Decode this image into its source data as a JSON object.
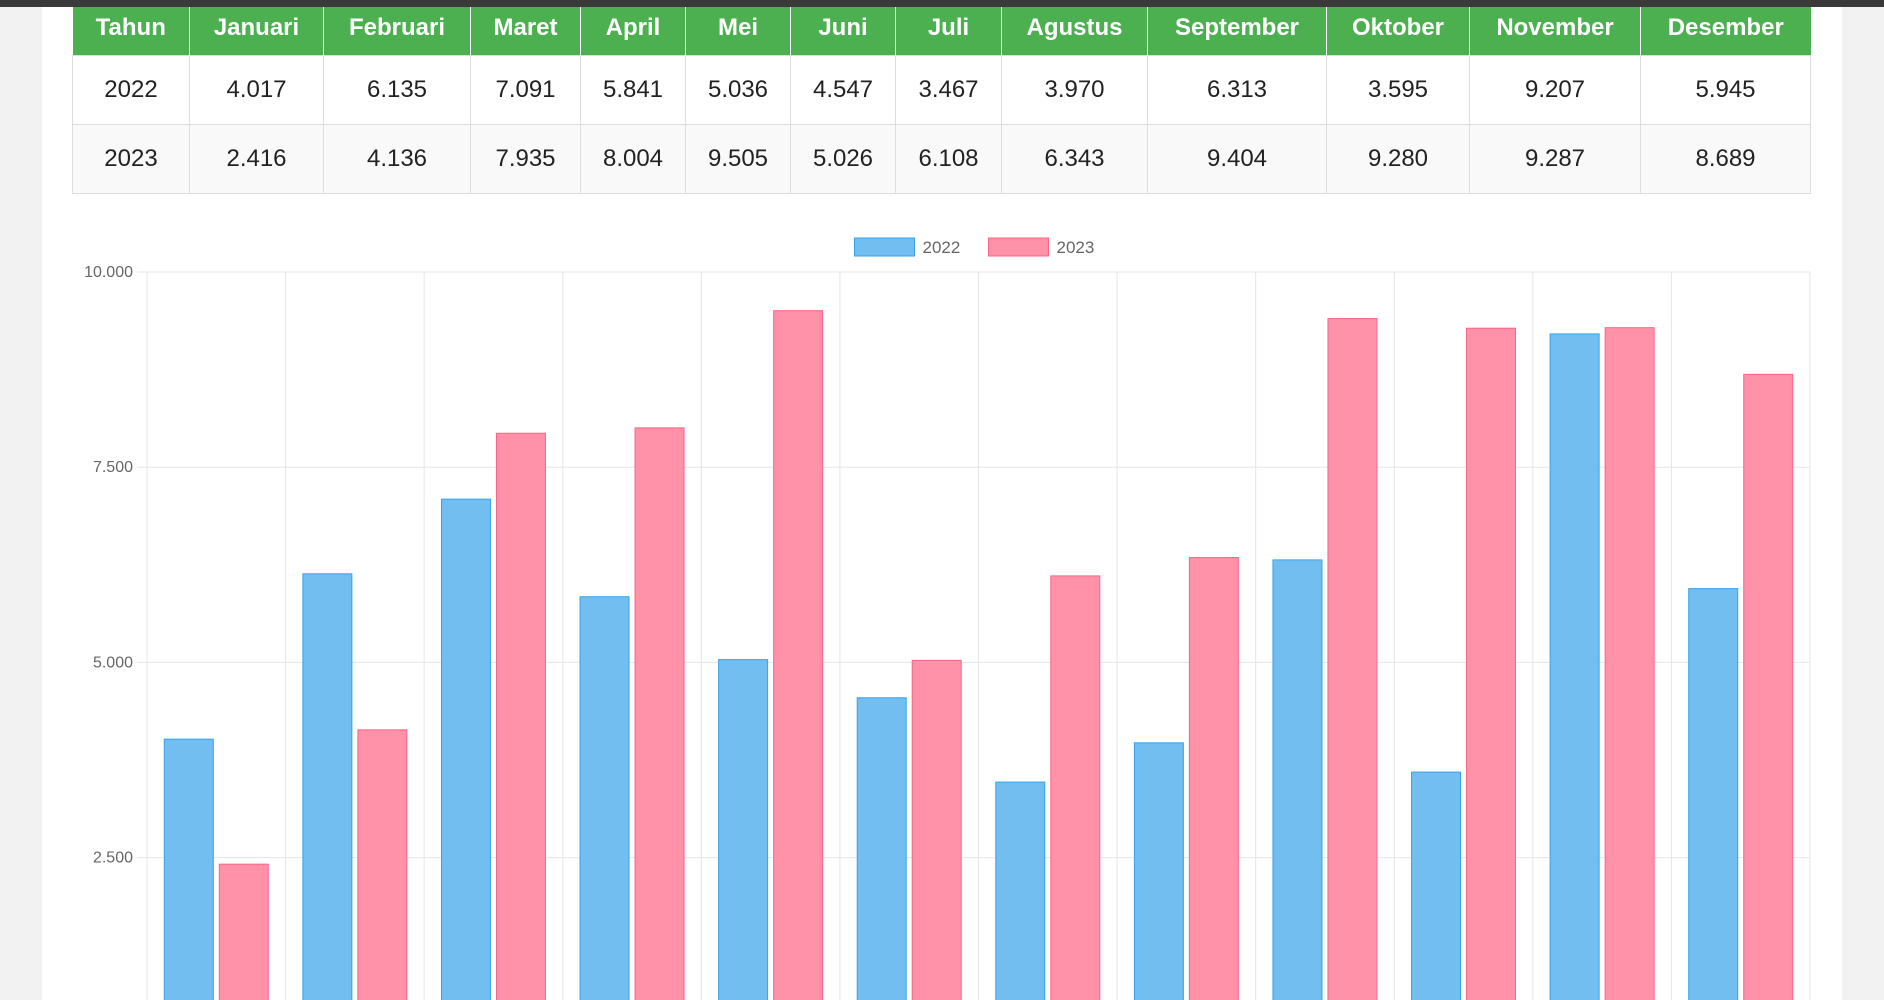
{
  "table": {
    "headers": [
      "Tahun",
      "Januari",
      "Februari",
      "Maret",
      "April",
      "Mei",
      "Juni",
      "Juli",
      "Agustus",
      "September",
      "Oktober",
      "November",
      "Desember"
    ],
    "rows": [
      [
        "2022",
        "4.017",
        "6.135",
        "7.091",
        "5.841",
        "5.036",
        "4.547",
        "3.467",
        "3.970",
        "6.313",
        "3.595",
        "9.207",
        "5.945"
      ],
      [
        "2023",
        "2.416",
        "4.136",
        "7.935",
        "8.004",
        "9.505",
        "5.026",
        "6.108",
        "6.343",
        "9.404",
        "9.280",
        "9.287",
        "8.689"
      ]
    ]
  },
  "chart_data": {
    "type": "bar",
    "categories": [
      "Januari",
      "Februari",
      "Maret",
      "April",
      "Mei",
      "Juni",
      "Juli",
      "Agustus",
      "September",
      "Oktober",
      "November",
      "Desember"
    ],
    "series": [
      {
        "name": "2022",
        "values": [
          4017,
          6135,
          7091,
          5841,
          5036,
          4547,
          3467,
          3970,
          6313,
          3595,
          9207,
          5945
        ],
        "fill": "#72bef0",
        "stroke": "#36a2eb"
      },
      {
        "name": "2023",
        "values": [
          2416,
          4136,
          7935,
          8004,
          9505,
          5026,
          6108,
          6343,
          9404,
          9280,
          9287,
          8689
        ],
        "fill": "#ff91a8",
        "stroke": "#ff6384"
      }
    ],
    "yticks": [
      "10.000",
      "7.500",
      "5.000",
      "2.500"
    ],
    "ylim": [
      0,
      10000
    ],
    "legend_position": "top-center",
    "grid": true
  }
}
